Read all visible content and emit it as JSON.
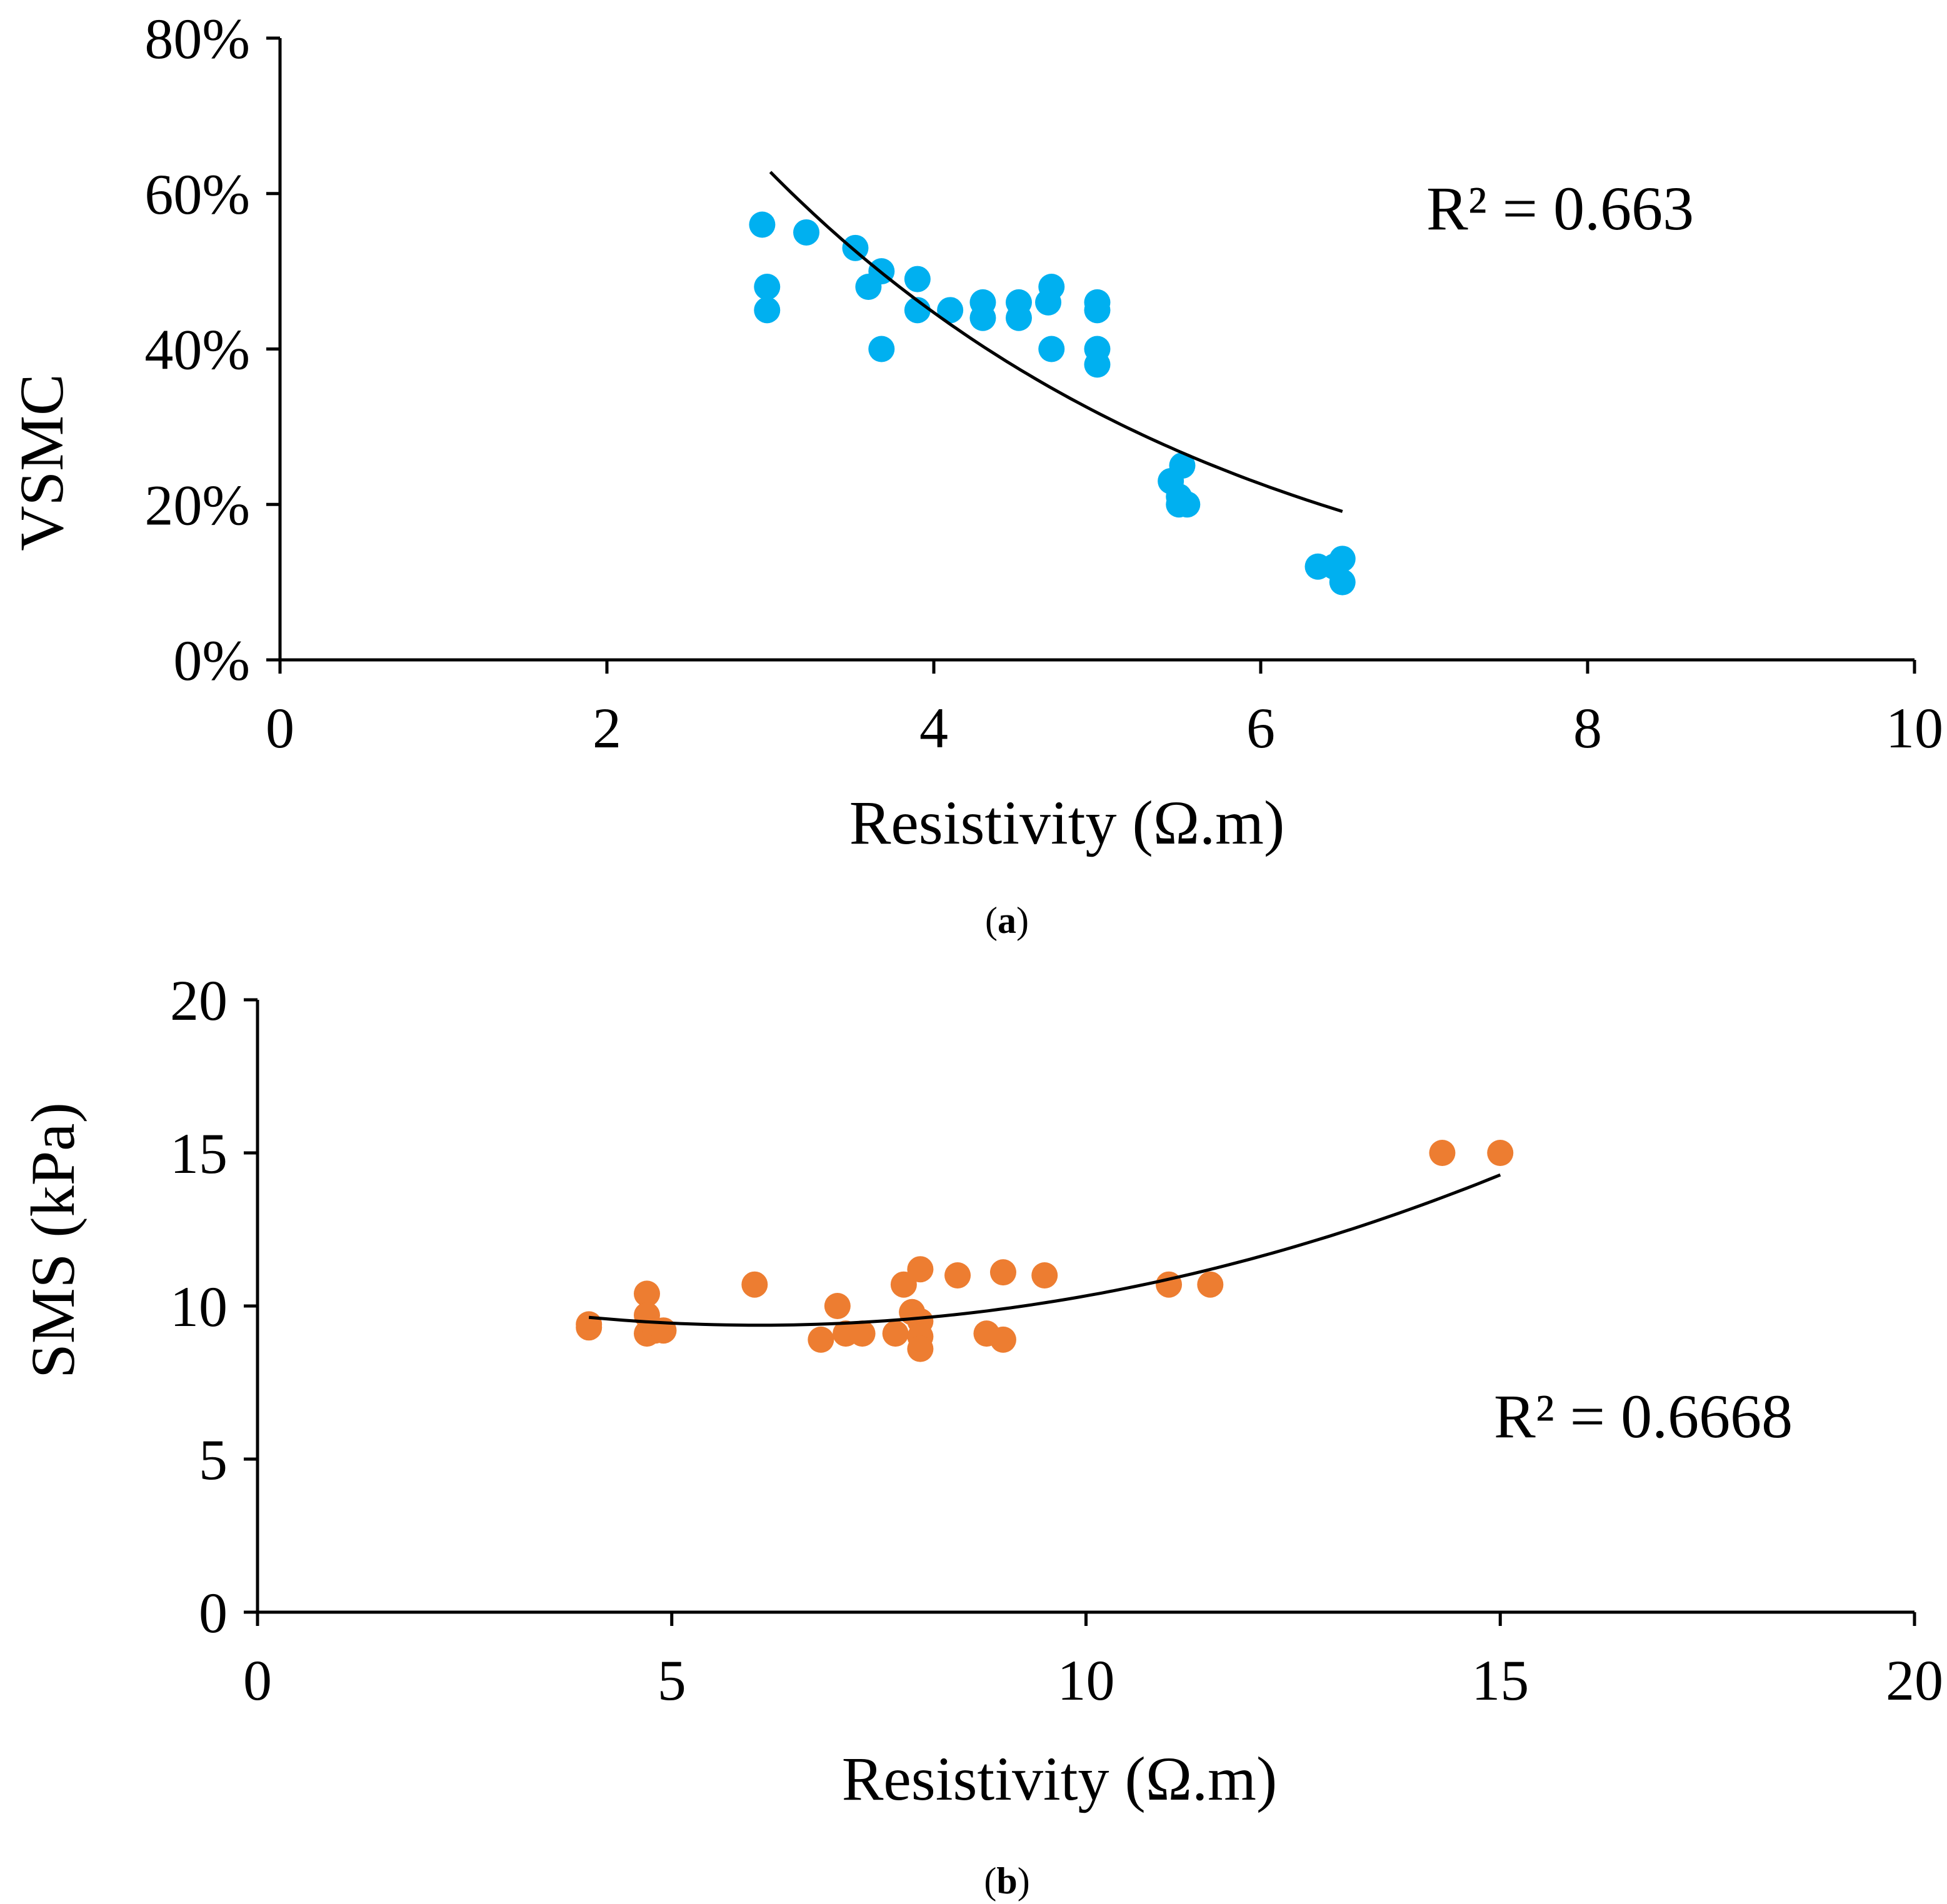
{
  "chart_data": [
    {
      "type": "scatter",
      "panel_label": "a",
      "xlabel": "Resistivity (Ω.m)",
      "ylabel": "VSMC",
      "xlim": [
        0,
        10
      ],
      "ylim": [
        0,
        80
      ],
      "xticks": [
        "0",
        "2",
        "4",
        "6",
        "8",
        "10"
      ],
      "yticks": [
        "0%",
        "20%",
        "40%",
        "60%",
        "80%"
      ],
      "r2_label": "R² = 0.663",
      "marker_color": "#00b0f0",
      "trend_color": "#000000",
      "points": [
        {
          "x": 2.95,
          "y": 56
        },
        {
          "x": 2.98,
          "y": 48
        },
        {
          "x": 2.98,
          "y": 45
        },
        {
          "x": 3.22,
          "y": 55
        },
        {
          "x": 3.52,
          "y": 53
        },
        {
          "x": 3.6,
          "y": 48
        },
        {
          "x": 3.68,
          "y": 50
        },
        {
          "x": 3.68,
          "y": 40
        },
        {
          "x": 3.9,
          "y": 49
        },
        {
          "x": 3.9,
          "y": 45
        },
        {
          "x": 4.1,
          "y": 45
        },
        {
          "x": 4.3,
          "y": 46
        },
        {
          "x": 4.3,
          "y": 44
        },
        {
          "x": 4.52,
          "y": 46
        },
        {
          "x": 4.52,
          "y": 44
        },
        {
          "x": 4.7,
          "y": 46
        },
        {
          "x": 4.72,
          "y": 48
        },
        {
          "x": 4.72,
          "y": 40
        },
        {
          "x": 5.0,
          "y": 46
        },
        {
          "x": 5.0,
          "y": 45
        },
        {
          "x": 5.0,
          "y": 40
        },
        {
          "x": 5.0,
          "y": 38
        },
        {
          "x": 5.45,
          "y": 23
        },
        {
          "x": 5.52,
          "y": 25
        },
        {
          "x": 5.5,
          "y": 21
        },
        {
          "x": 5.5,
          "y": 20
        },
        {
          "x": 5.55,
          "y": 20
        },
        {
          "x": 6.35,
          "y": 12
        },
        {
          "x": 6.45,
          "y": 12
        },
        {
          "x": 6.5,
          "y": 13
        },
        {
          "x": 6.5,
          "y": 10
        }
      ],
      "trendline": {
        "model": "exponential",
        "x_range": [
          3.0,
          6.5
        ],
        "a": 174.1,
        "b": -0.34
      }
    },
    {
      "type": "scatter",
      "panel_label": "b",
      "xlabel": "Resistivity (Ω.m)",
      "ylabel": "SMS (kPa)",
      "xlim": [
        0,
        20
      ],
      "ylim": [
        0,
        20
      ],
      "xticks": [
        "0",
        "5",
        "10",
        "15",
        "20"
      ],
      "yticks": [
        "0",
        "5",
        "10",
        "15",
        "20"
      ],
      "r2_label": "R² = 0.6668",
      "marker_color": "#ed7d31",
      "trend_color": "#000000",
      "points": [
        {
          "x": 4.0,
          "y": 9.4
        },
        {
          "x": 4.0,
          "y": 9.3
        },
        {
          "x": 4.7,
          "y": 10.4
        },
        {
          "x": 4.7,
          "y": 9.7
        },
        {
          "x": 4.7,
          "y": 9.1
        },
        {
          "x": 4.8,
          "y": 9.2
        },
        {
          "x": 4.9,
          "y": 9.2
        },
        {
          "x": 6.0,
          "y": 10.7
        },
        {
          "x": 6.8,
          "y": 8.9
        },
        {
          "x": 7.0,
          "y": 10.0
        },
        {
          "x": 7.1,
          "y": 9.1
        },
        {
          "x": 7.3,
          "y": 9.1
        },
        {
          "x": 7.7,
          "y": 9.1
        },
        {
          "x": 7.8,
          "y": 10.7
        },
        {
          "x": 7.9,
          "y": 9.8
        },
        {
          "x": 8.0,
          "y": 11.2
        },
        {
          "x": 8.0,
          "y": 9.5
        },
        {
          "x": 8.0,
          "y": 9.0
        },
        {
          "x": 8.0,
          "y": 8.6
        },
        {
          "x": 8.45,
          "y": 11.0
        },
        {
          "x": 8.8,
          "y": 9.1
        },
        {
          "x": 9.0,
          "y": 11.1
        },
        {
          "x": 9.0,
          "y": 8.9
        },
        {
          "x": 9.5,
          "y": 11.0
        },
        {
          "x": 11.0,
          "y": 10.7
        },
        {
          "x": 11.5,
          "y": 10.7
        },
        {
          "x": 14.3,
          "y": 15.0
        },
        {
          "x": 15.0,
          "y": 15.0
        }
      ],
      "trendline": {
        "model": "polynomial2",
        "x_range": [
          4.0,
          15.0
        ],
        "c2": 0.06122,
        "c1": -0.7402,
        "c0": 11.61
      }
    }
  ]
}
